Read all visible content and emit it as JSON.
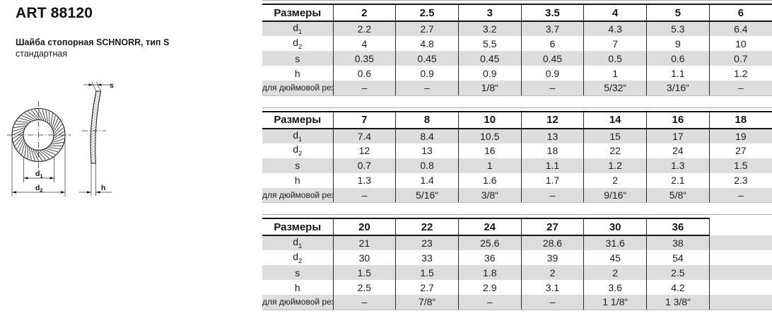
{
  "header": {
    "art": "ART 88120",
    "subtitle_bold": "Шайба стопорная SCHNORR, тип S",
    "subtitle_normal": "стандартная"
  },
  "drawing": {
    "dim_d1_base": "d",
    "dim_d1_sub": "1",
    "dim_d2_base": "d",
    "dim_d2_sub": "2",
    "dim_s": "s",
    "dim_h": "h"
  },
  "table_common": {
    "header_label": "Размеры",
    "row_labels": [
      {
        "base": "d",
        "sub": "1",
        "small": false
      },
      {
        "base": "d",
        "sub": "2",
        "small": false
      },
      {
        "base": "s",
        "sub": "",
        "small": false
      },
      {
        "base": "h",
        "sub": "",
        "small": false
      },
      {
        "base": "для дюймовой резьбы",
        "sub": "",
        "small": true
      }
    ]
  },
  "tables": [
    {
      "name": "sizes-2-to-6",
      "sizes": [
        "2",
        "2.5",
        "3",
        "3.5",
        "4",
        "5",
        "6"
      ],
      "rows": [
        [
          "2.2",
          "2.7",
          "3.2",
          "3.7",
          "4.3",
          "5.3",
          "6.4"
        ],
        [
          "4",
          "4.8",
          "5.5",
          "6",
          "7",
          "9",
          "10"
        ],
        [
          "0.35",
          "0.45",
          "0.45",
          "0.45",
          "0.5",
          "0.6",
          "0.7"
        ],
        [
          "0.6",
          "0.9",
          "0.9",
          "0.9",
          "1",
          "1.1",
          "1.2"
        ],
        [
          "–",
          "–",
          "1/8“",
          "–",
          "5/32“",
          "3/16“",
          "–"
        ]
      ]
    },
    {
      "name": "sizes-7-to-18",
      "sizes": [
        "7",
        "8",
        "10",
        "12",
        "14",
        "16",
        "18"
      ],
      "rows": [
        [
          "7.4",
          "8.4",
          "10.5",
          "13",
          "15",
          "17",
          "19"
        ],
        [
          "12",
          "13",
          "16",
          "18",
          "22",
          "24",
          "27"
        ],
        [
          "0.7",
          "0.8",
          "1",
          "1.1",
          "1.2",
          "1.3",
          "1.5"
        ],
        [
          "1.3",
          "1.4",
          "1.6",
          "1.7",
          "2",
          "2.1",
          "2.3"
        ],
        [
          "–",
          "5/16“",
          "3/8“",
          "–",
          "9/16“",
          "5/8“",
          "–"
        ]
      ]
    },
    {
      "name": "sizes-20-to-36",
      "sizes": [
        "20",
        "22",
        "24",
        "27",
        "30",
        "36",
        ""
      ],
      "rows": [
        [
          "21",
          "23",
          "25.6",
          "28.6",
          "31.6",
          "38",
          ""
        ],
        [
          "30",
          "33",
          "36",
          "39",
          "45",
          "54",
          ""
        ],
        [
          "1.5",
          "1.5",
          "1.8",
          "2",
          "2",
          "2.5",
          ""
        ],
        [
          "2.5",
          "2.7",
          "2.9",
          "3.1",
          "3.6",
          "4.2",
          ""
        ],
        [
          "–",
          "7/8“",
          "–",
          "–",
          "1 1/8“",
          "1 3/8“",
          ""
        ]
      ]
    }
  ],
  "colors": {
    "row_stripe": "#dddddd",
    "border_heavy": "#141414",
    "border_light": "#a8a8a8",
    "grid_line": "#2a2a2a",
    "text": "#1a1a1a"
  }
}
